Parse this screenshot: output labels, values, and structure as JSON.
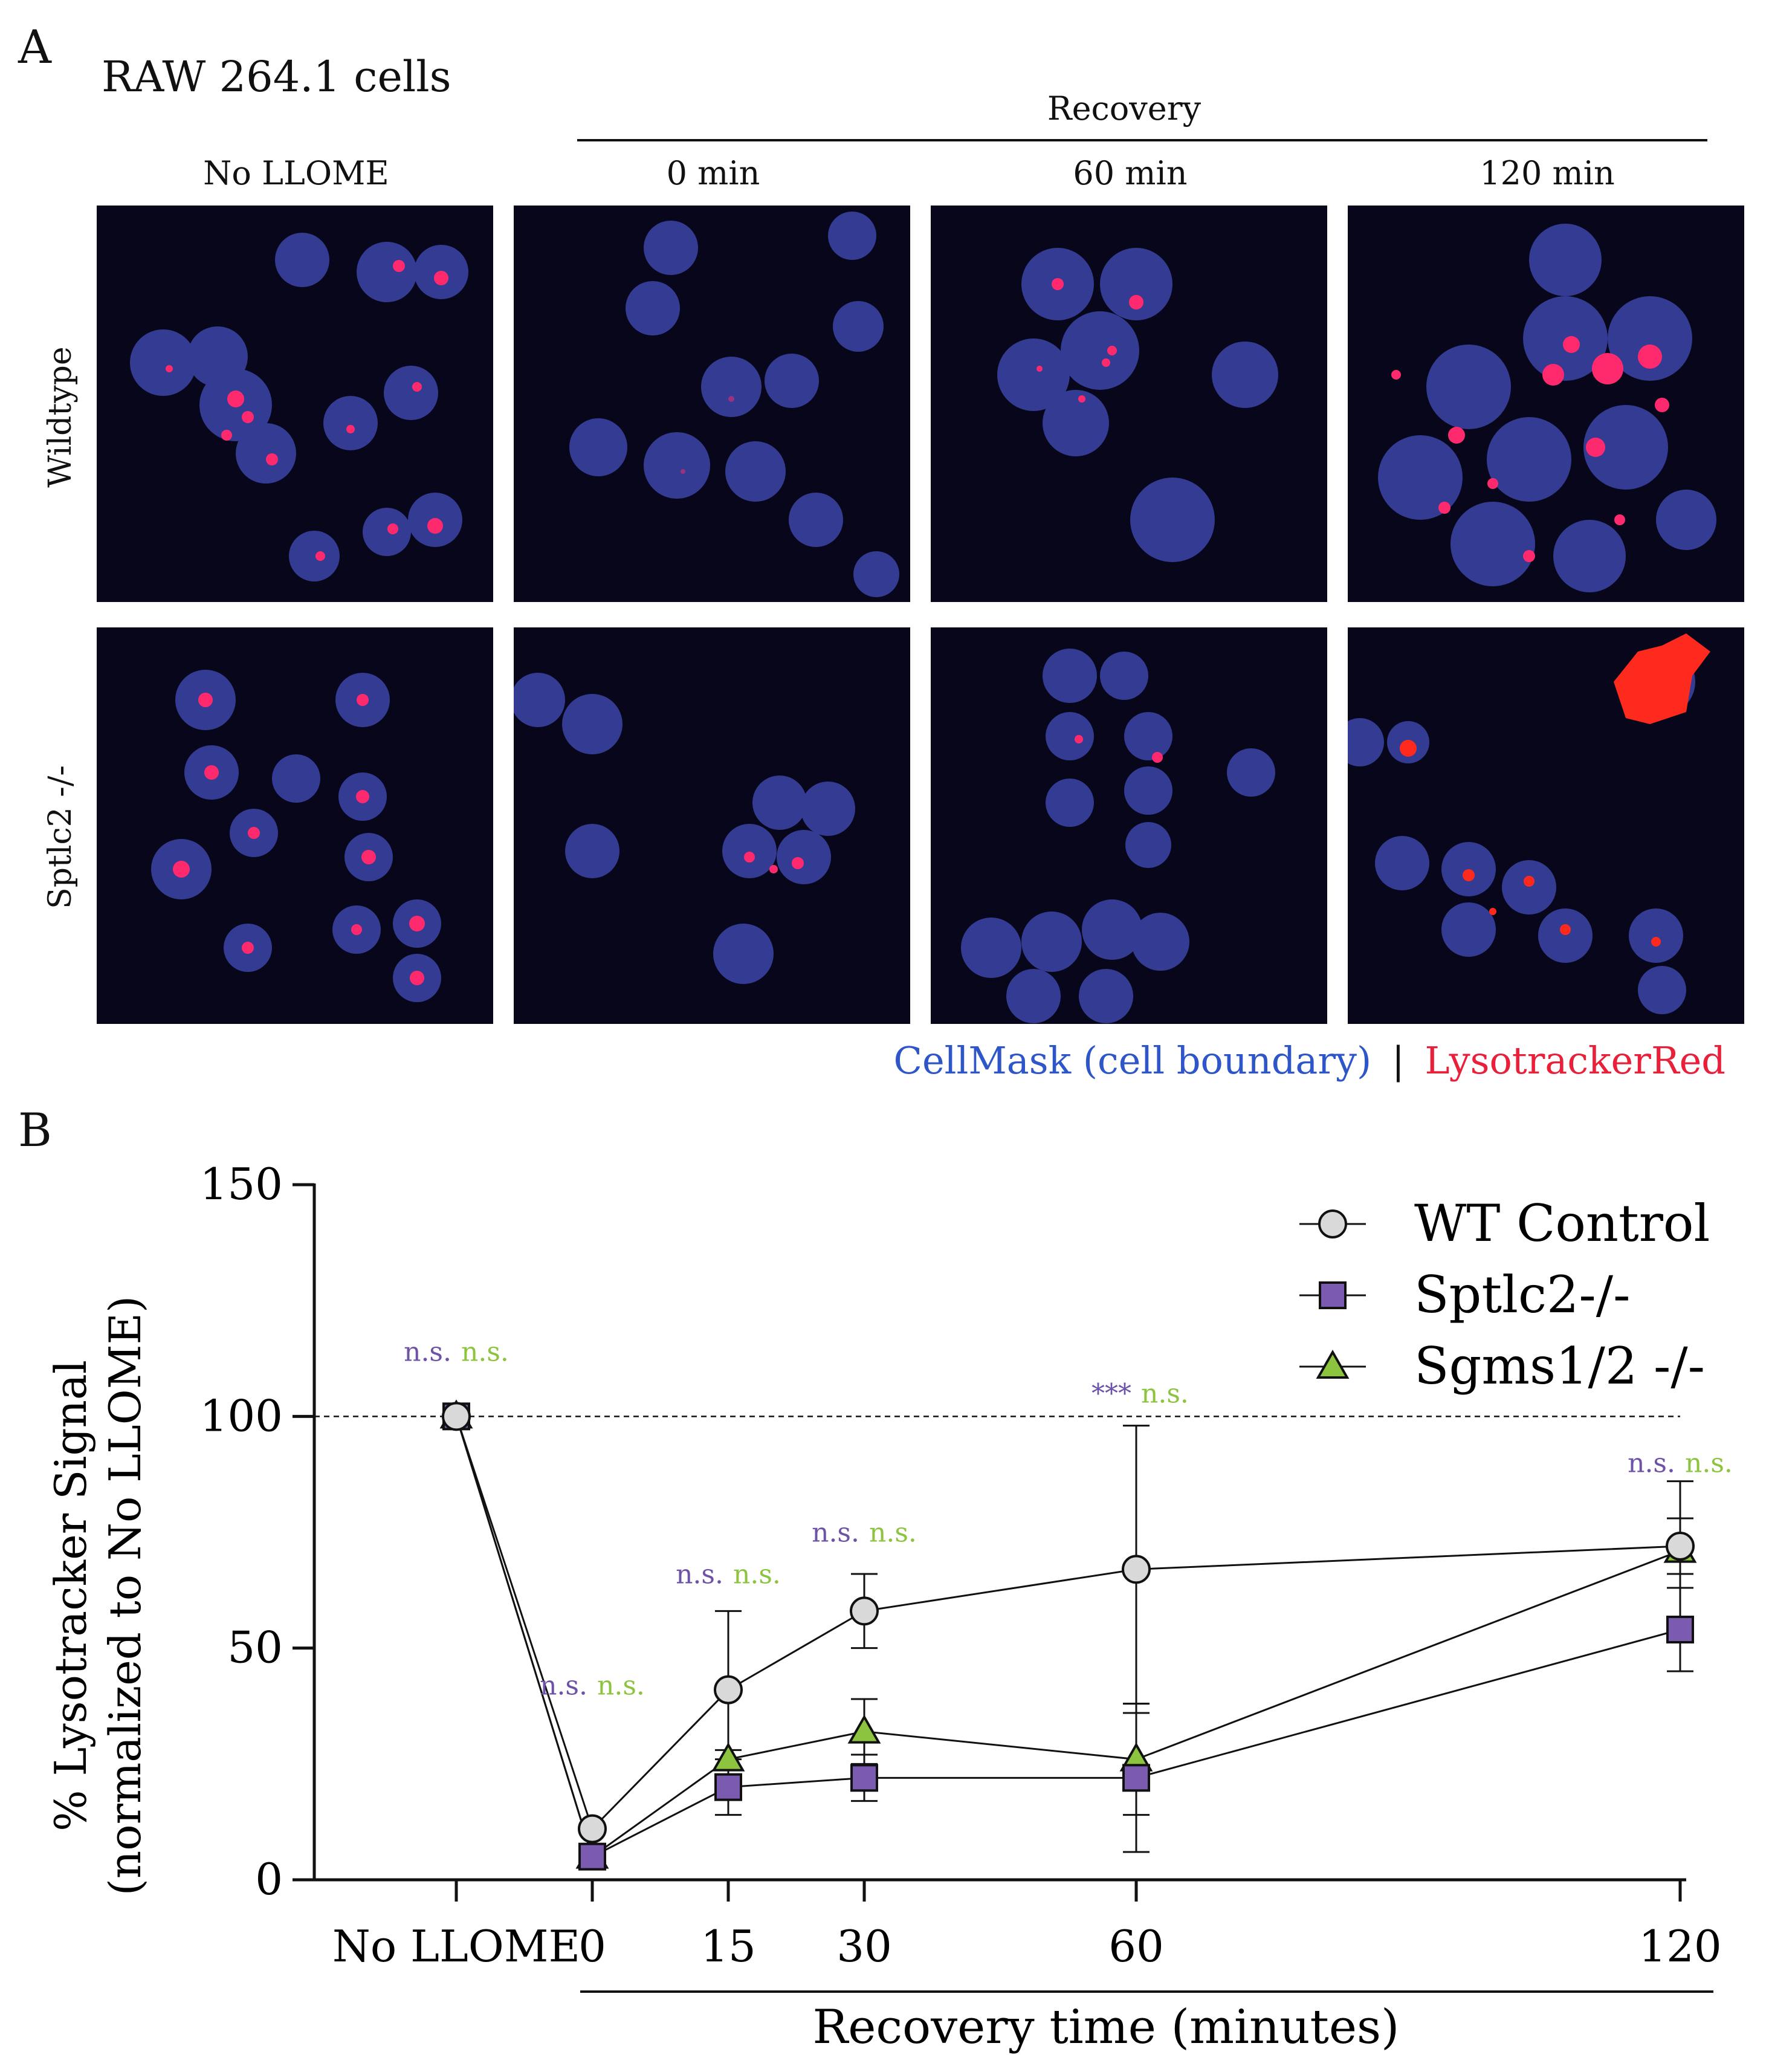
{
  "panel_a": {
    "letter": "A",
    "title": "RAW 264.1 cells",
    "recovery_label": "Recovery",
    "column_headers": [
      "No LLOME",
      "0 min",
      "60 min",
      "120 min"
    ],
    "row_labels": [
      "Wildtype",
      "Sptlc2 -/-"
    ],
    "stain_legend": {
      "cellmask": "CellMask (cell boundary)",
      "separator": "|",
      "lysotracker": "LysotrackerRed",
      "cellmask_color": "#2f56c9",
      "lysotracker_color": "#e8203a"
    },
    "image_description_note": ""
  },
  "panel_b": {
    "letter": "B"
  },
  "chart_data": {
    "type": "line",
    "title": "",
    "xlabel": "Recovery time (minutes)",
    "ylabel_line1": "% Lysotracker Signal",
    "ylabel_line2": "(normalized to No LLOME)",
    "categories": [
      "No LLOME",
      "0",
      "15",
      "30",
      "60",
      "120"
    ],
    "x_positions": [
      -10,
      0,
      15,
      30,
      60,
      120
    ],
    "ylim": [
      0,
      150
    ],
    "yticks": [
      0,
      50,
      100,
      150
    ],
    "reference_line": 100,
    "series": [
      {
        "name": "WT Control",
        "marker": "circle",
        "color": "#d9d9d9",
        "values": [
          100,
          11,
          41,
          58,
          67,
          72
        ],
        "err": [
          0,
          0,
          17,
          8,
          31,
          6
        ]
      },
      {
        "name": "Sptlc2-/-",
        "marker": "square",
        "color": "#7a5bb0",
        "values": [
          100,
          5,
          20,
          22,
          22,
          54
        ],
        "err": [
          0,
          0,
          6,
          5,
          16,
          9
        ]
      },
      {
        "name": "Sgms1/2 -/-",
        "marker": "triangle",
        "color": "#8cc43f",
        "values": [
          100,
          5,
          26,
          32,
          26,
          71
        ],
        "err": [
          0,
          0,
          2,
          7,
          12,
          15
        ]
      }
    ],
    "annotations": [
      {
        "x": -10,
        "labels": [
          "n.s.",
          "n.s."
        ],
        "y": 112
      },
      {
        "x": 0,
        "labels": [
          "n.s.",
          "n.s."
        ],
        "y": 40
      },
      {
        "x": 15,
        "labels": [
          "n.s.",
          "n.s."
        ],
        "y": 64
      },
      {
        "x": 30,
        "labels": [
          "n.s.",
          "n.s."
        ],
        "y": 73
      },
      {
        "x": 60,
        "labels": [
          "***",
          "n.s."
        ],
        "y": 103
      },
      {
        "x": 120,
        "labels": [
          "n.s.",
          "n.s."
        ],
        "y": 88
      }
    ],
    "annotation_colors": [
      "#6e52a8",
      "#8cc43f"
    ],
    "legend_position": "top-right"
  }
}
